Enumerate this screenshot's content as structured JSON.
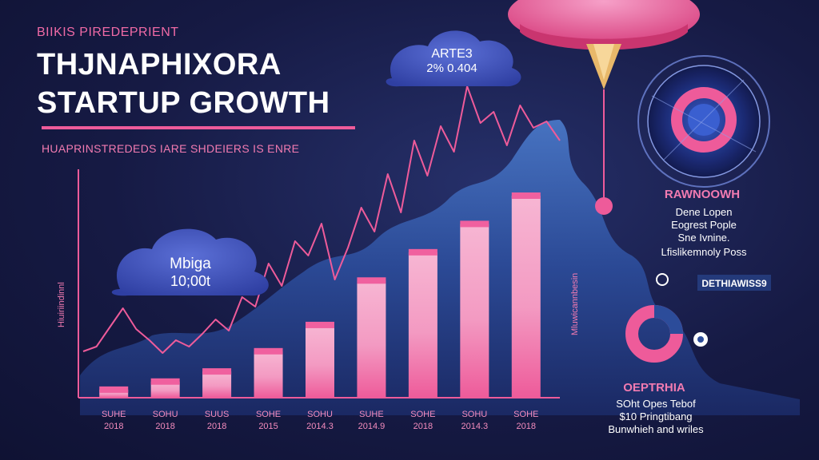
{
  "header": {
    "eyebrow": "BIIKIS PIREDEPRIENT",
    "title_line1": "THJNAPHIXORA",
    "title_line2": "STARTUP GROWTH",
    "subtitle": "HUAPRINSTREDEDS IARE SHDEIERS IS ENRE"
  },
  "side_labels": {
    "left": "Hiuiriindinnl",
    "middle": "Mluwicannbesin"
  },
  "callouts": {
    "top_cloud_line1": "ARTE3",
    "top_cloud_line2": "2% 0.404",
    "left_cloud_line1": "Mbiga",
    "left_cloud_line2": "10;00t"
  },
  "right_panel": {
    "heading": "RAWNOOWH",
    "lines": [
      "Dene Lopen",
      "Eogrest Pople",
      "Sne Ivnine.",
      "Lfislikemnoly Poss"
    ],
    "tag": "DETHIAWISS9",
    "heading2": "OEPTRHIA",
    "lines2": [
      "SOht Opes Tebof",
      "$10 Pringtibang",
      "Bunwhieh and wriles"
    ]
  },
  "colors": {
    "background": "#161a44",
    "accent_pink": "#ee5b9a",
    "bar_light": "#f4a6c9",
    "bar_dark": "#f0609f",
    "mountain": "#2c4c9a"
  },
  "chart_data": {
    "type": "bar",
    "categories": [
      "SUHE\n2018",
      "SOHU\n2018",
      "SUUS\n2018",
      "SOHE\n2015",
      "SOHU\n2014.3",
      "SUHE\n2014.9",
      "SOHE\n2018",
      "SOHU\n2014.3",
      "SOHE\n2018"
    ],
    "series": [
      {
        "values": [
          4,
          8,
          13,
          23,
          36,
          58,
          72,
          86,
          100
        ]
      }
    ],
    "line_series": [
      {
        "values": [
          30,
          36,
          60,
          84,
          58,
          44,
          28,
          44,
          36,
          52,
          70,
          56,
          98,
          86,
          140,
          112,
          168,
          150,
          190,
          120,
          160,
          210,
          180,
          252,
          204,
          294,
          250,
          312,
          280,
          362,
          316,
          330,
          288,
          338,
          310,
          318,
          294
        ]
      }
    ],
    "ylim": [
      0,
      100
    ],
    "grid": false,
    "legend": "none"
  }
}
